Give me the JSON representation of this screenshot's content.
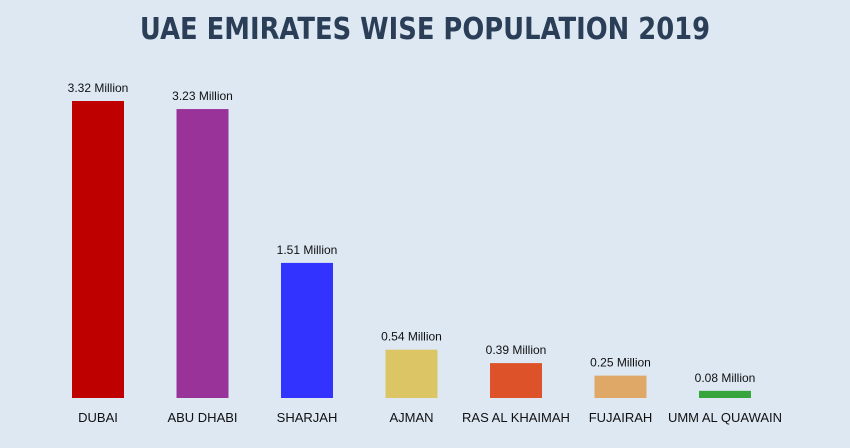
{
  "chart_data": {
    "type": "bar",
    "title": "UAE EMIRATES WISE POPULATION 2019",
    "xlabel": "",
    "ylabel": "",
    "unit": "Million",
    "ylim": [
      0,
      3.32
    ],
    "grid": false,
    "categories": [
      "DUBAI",
      "ABU DHABI",
      "SHARJAH",
      "AJMAN",
      "RAS AL KHAIMAH",
      "FUJAIRAH",
      "UMM AL QUAWAIN"
    ],
    "values": [
      3.32,
      3.23,
      1.51,
      0.54,
      0.39,
      0.25,
      0.08
    ],
    "value_labels": [
      "3.32 Million",
      "3.23 Million",
      "1.51 Million",
      "0.54 Million",
      "0.39 Million",
      "0.25 Million",
      "0.08 Million"
    ],
    "colors": [
      "#bf0000",
      "#993399",
      "#3333ff",
      "#dcc564",
      "#dd5228",
      "#dfa866",
      "#37a43c"
    ]
  }
}
